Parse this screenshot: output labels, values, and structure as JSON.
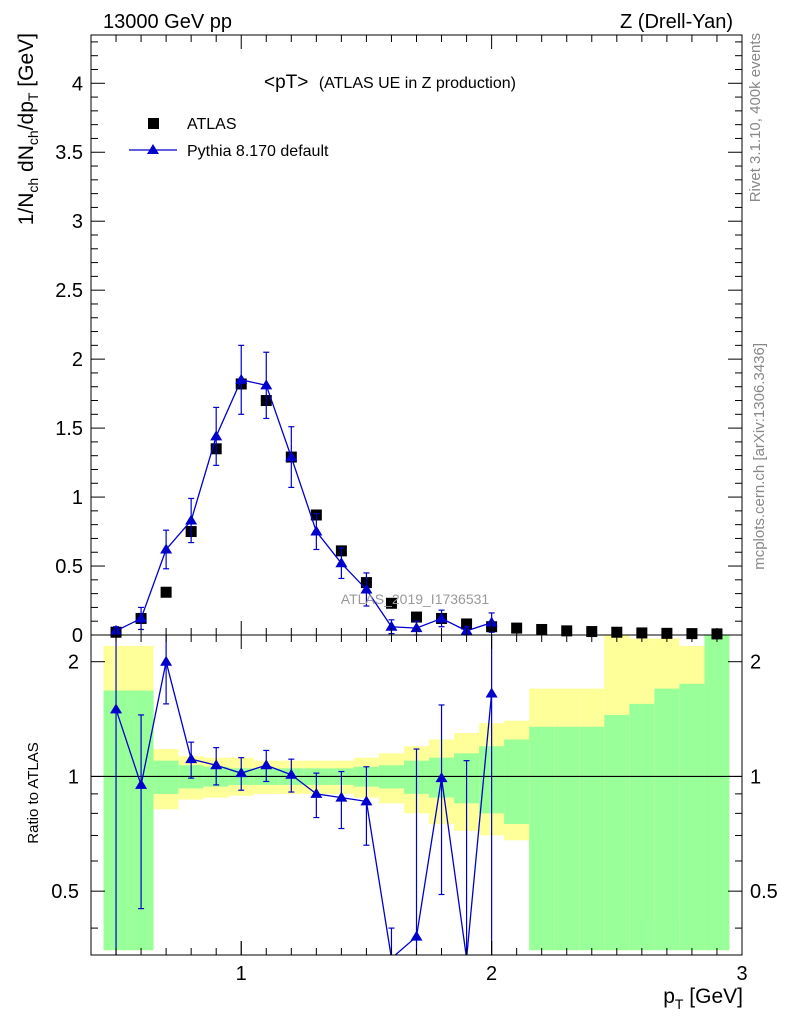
{
  "header": {
    "energy": "13000 GeV pp",
    "process": "Z (Drell-Yan)"
  },
  "side_labels": {
    "rivet": "Rivet 3.1.10,  400k events",
    "mcplots": "mcplots.cern.ch [arXiv:1306.3436]"
  },
  "watermark": "ATLAS_2019_I1736531",
  "colors": {
    "mc": "#0000cc",
    "data": "#000000",
    "band_inner": "#99ff99",
    "band_outer": "#ffff99"
  },
  "chart_data": [
    {
      "type": "scatter",
      "title": "<pT> (ATLAS UE in Z production)",
      "title_main": "<pT>",
      "title_sub": "(ATLAS UE in Z production)",
      "xlabel": "p_T [GeV]",
      "ylabel": "1/N_ch dN_ch/dp_T [GeV]",
      "xlim": [
        0.4,
        3.0
      ],
      "ylim": [
        0,
        4.35
      ],
      "y_ticks": [
        0,
        0.5,
        1,
        1.5,
        2,
        2.5,
        3,
        3.5,
        4
      ],
      "y_tick_labels": [
        "0",
        "0.5",
        "1",
        "1.5",
        "2",
        "2.5",
        "3",
        "3.5",
        "4"
      ],
      "legend_position": "top-left",
      "series": [
        {
          "name": "ATLAS",
          "marker": "square",
          "x": [
            0.5,
            0.6,
            0.7,
            0.8,
            0.9,
            1.0,
            1.1,
            1.2,
            1.3,
            1.4,
            1.5,
            1.6,
            1.7,
            1.8,
            1.9,
            2.0,
            2.1,
            2.2,
            2.3,
            2.4,
            2.5,
            2.6,
            2.7,
            2.8,
            2.9
          ],
          "values": [
            0.02,
            0.12,
            0.31,
            0.75,
            1.35,
            1.82,
            1.7,
            1.29,
            0.87,
            0.61,
            0.38,
            0.23,
            0.13,
            0.12,
            0.08,
            0.06,
            0.05,
            0.04,
            0.03,
            0.025,
            0.02,
            0.015,
            0.012,
            0.01,
            0.008
          ]
        },
        {
          "name": "Pythia 8.170 default",
          "marker": "triangle",
          "x": [
            0.5,
            0.6,
            0.7,
            0.8,
            0.9,
            1.0,
            1.1,
            1.2,
            1.3,
            1.4,
            1.5,
            1.6,
            1.7,
            1.8,
            1.9,
            2.0
          ],
          "values": [
            0.03,
            0.12,
            0.62,
            0.83,
            1.44,
            1.85,
            1.81,
            1.29,
            0.75,
            0.52,
            0.33,
            0.06,
            0.05,
            0.12,
            0.03,
            0.09
          ],
          "errors": [
            0.03,
            0.08,
            0.14,
            0.16,
            0.21,
            0.25,
            0.24,
            0.22,
            0.13,
            0.11,
            0.12,
            0.05,
            0.05,
            0.06,
            0.03,
            0.07
          ]
        }
      ]
    },
    {
      "type": "line",
      "title": "",
      "xlabel": "p_T [GeV]",
      "ylabel": "Ratio to ATLAS",
      "xlim": [
        0.4,
        3.0
      ],
      "ylim": [
        0.34,
        2.35
      ],
      "x_ticks": [
        1,
        2,
        3
      ],
      "x_tick_labels": [
        "1",
        "2",
        "3"
      ],
      "y_ticks": [
        0.5,
        1,
        2
      ],
      "y_tick_labels": [
        "0.5",
        "1",
        "2"
      ],
      "reference_line": 1,
      "bins": [
        [
          0.45,
          0.55
        ],
        [
          0.55,
          0.65
        ],
        [
          0.65,
          0.75
        ],
        [
          0.75,
          0.85
        ],
        [
          0.85,
          0.95
        ],
        [
          0.95,
          1.05
        ],
        [
          1.05,
          1.15
        ],
        [
          1.15,
          1.25
        ],
        [
          1.25,
          1.35
        ],
        [
          1.35,
          1.45
        ],
        [
          1.45,
          1.55
        ],
        [
          1.55,
          1.65
        ],
        [
          1.65,
          1.75
        ],
        [
          1.75,
          1.85
        ],
        [
          1.85,
          1.95
        ],
        [
          1.95,
          2.05
        ],
        [
          2.05,
          2.15
        ],
        [
          2.15,
          2.25
        ],
        [
          2.25,
          2.35
        ],
        [
          2.35,
          2.45
        ],
        [
          2.45,
          2.55
        ],
        [
          2.55,
          2.65
        ],
        [
          2.65,
          2.75
        ],
        [
          2.75,
          2.85
        ],
        [
          2.85,
          2.95
        ]
      ],
      "band_inner_low": [
        0.35,
        0.35,
        0.9,
        0.93,
        0.94,
        0.95,
        0.95,
        0.95,
        0.95,
        0.95,
        0.94,
        0.93,
        0.9,
        0.88,
        0.85,
        0.8,
        0.75,
        0.35,
        0.35,
        0.35,
        0.35,
        0.35,
        0.35,
        0.35,
        0.35
      ],
      "band_inner_high": [
        1.68,
        1.68,
        1.1,
        1.07,
        1.06,
        1.05,
        1.05,
        1.05,
        1.05,
        1.05,
        1.06,
        1.07,
        1.1,
        1.12,
        1.15,
        1.2,
        1.25,
        1.35,
        1.35,
        1.35,
        1.45,
        1.55,
        1.7,
        1.75,
        2.4
      ],
      "band_outer_low": [
        0.35,
        0.35,
        0.82,
        0.87,
        0.88,
        0.89,
        0.9,
        0.9,
        0.9,
        0.9,
        0.88,
        0.85,
        0.8,
        0.75,
        0.72,
        0.7,
        0.68,
        0.35,
        0.35,
        0.35,
        0.35,
        0.35,
        0.42,
        0.35,
        0.35
      ],
      "band_outer_high": [
        2.2,
        2.2,
        1.18,
        1.13,
        1.12,
        1.12,
        1.1,
        1.1,
        1.1,
        1.1,
        1.12,
        1.15,
        1.2,
        1.25,
        1.3,
        1.38,
        1.4,
        1.7,
        1.7,
        1.7,
        2.4,
        2.3,
        2.3,
        2.2,
        2.4
      ],
      "series": [
        {
          "name": "Pythia 8.170 default / ATLAS",
          "x": [
            0.5,
            0.6,
            0.7,
            0.8,
            0.9,
            1.0,
            1.1,
            1.2,
            1.3,
            1.4,
            1.5,
            1.6,
            1.7,
            1.8,
            1.9,
            2.0
          ],
          "values": [
            1.5,
            0.95,
            2.0,
            1.11,
            1.07,
            1.02,
            1.07,
            1.01,
            0.9,
            0.88,
            0.86,
            0.2,
            0.38,
            0.99,
            0.3,
            1.65
          ],
          "err_low": [
            1.5,
            0.5,
            0.45,
            0.12,
            0.12,
            0.1,
            0.1,
            0.1,
            0.12,
            0.15,
            0.2,
            0.2,
            0.25,
            0.5,
            0.3,
            1.65
          ],
          "err_high": [
            1.5,
            0.5,
            0.45,
            0.12,
            0.12,
            0.1,
            0.1,
            0.1,
            0.12,
            0.15,
            0.2,
            0.2,
            0.8,
            0.55,
            0.8,
            1.65
          ]
        }
      ]
    }
  ]
}
